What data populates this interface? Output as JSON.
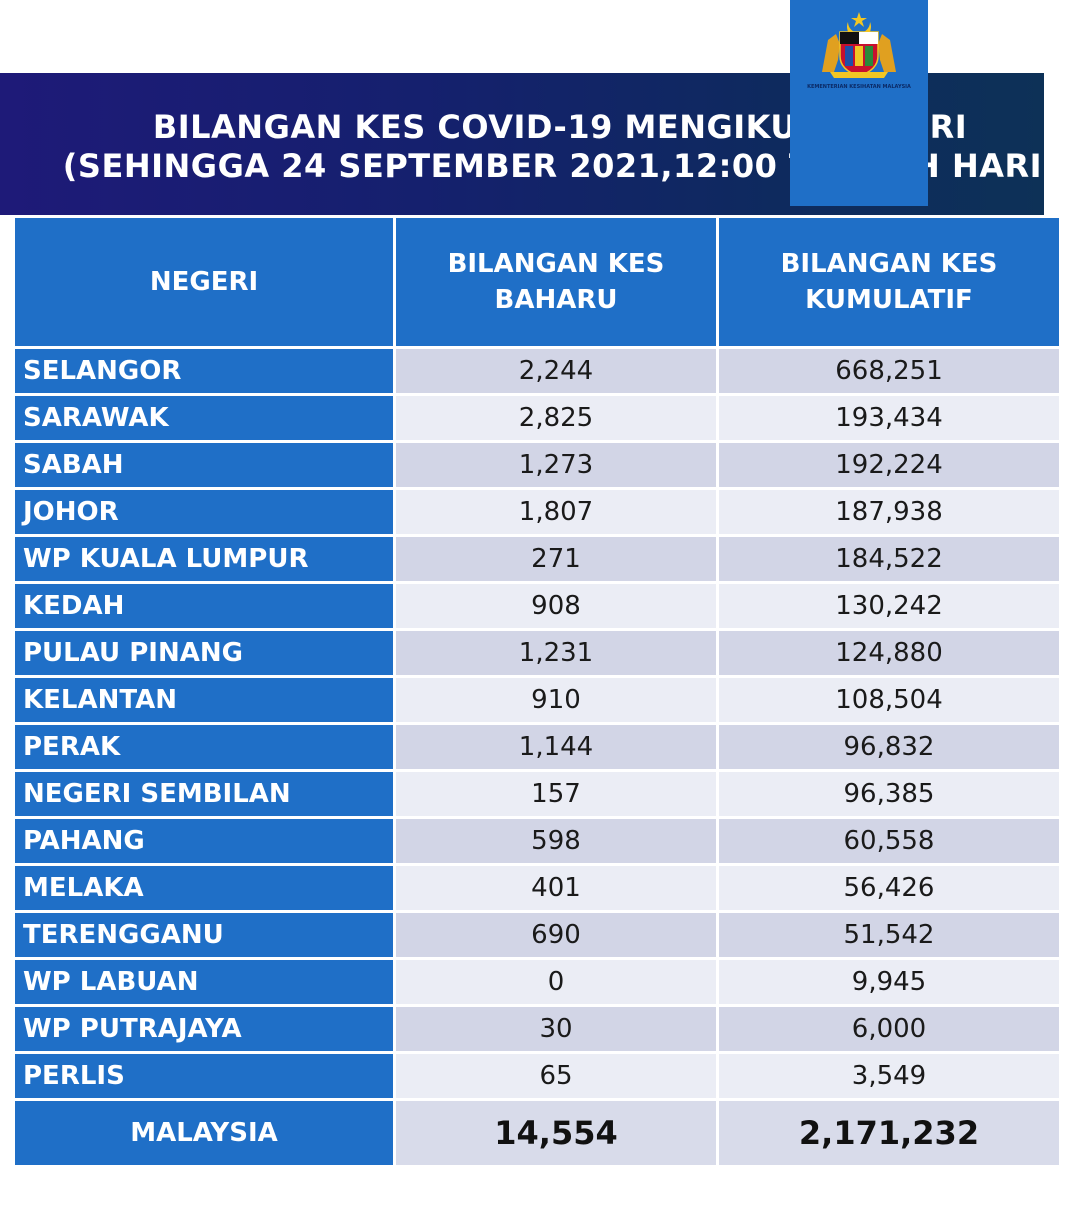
{
  "title_line1": "BILANGAN KES COVID-19 MENGIKUT NEGERI",
  "title_line2": "(SEHINGGA 24 SEPTEMBER 2021,12:00 TENGAH HARI)",
  "crest": {
    "icon": "malaysia-coat-of-arms",
    "text": "KEMENTERIAN KESIHATAN MALAYSIA"
  },
  "colors": {
    "header_blue": "#1f6fc7",
    "banner_navy": "#1e1a78",
    "row_shade_dark": "#d2d5e6",
    "row_shade_light": "#ebedf5"
  },
  "table": {
    "headers": [
      "NEGERI",
      "BILANGAN KES BAHARU",
      "BILANGAN KES KUMULATIF"
    ],
    "rows": [
      {
        "state": "SELANGOR",
        "new": "2,244",
        "cumulative": "668,251"
      },
      {
        "state": "SARAWAK",
        "new": "2,825",
        "cumulative": "193,434"
      },
      {
        "state": "SABAH",
        "new": "1,273",
        "cumulative": "192,224"
      },
      {
        "state": "JOHOR",
        "new": "1,807",
        "cumulative": "187,938"
      },
      {
        "state": "WP KUALA LUMPUR",
        "new": "271",
        "cumulative": "184,522"
      },
      {
        "state": "KEDAH",
        "new": "908",
        "cumulative": "130,242"
      },
      {
        "state": "PULAU PINANG",
        "new": "1,231",
        "cumulative": "124,880"
      },
      {
        "state": "KELANTAN",
        "new": "910",
        "cumulative": "108,504"
      },
      {
        "state": "PERAK",
        "new": "1,144",
        "cumulative": "96,832"
      },
      {
        "state": "NEGERI SEMBILAN",
        "new": "157",
        "cumulative": "96,385"
      },
      {
        "state": "PAHANG",
        "new": "598",
        "cumulative": "60,558"
      },
      {
        "state": "MELAKA",
        "new": "401",
        "cumulative": "56,426"
      },
      {
        "state": "TERENGGANU",
        "new": "690",
        "cumulative": "51,542"
      },
      {
        "state": "WP LABUAN",
        "new": "0",
        "cumulative": "9,945"
      },
      {
        "state": "WP PUTRAJAYA",
        "new": "30",
        "cumulative": "6,000"
      },
      {
        "state": "PERLIS",
        "new": "65",
        "cumulative": "3,549"
      }
    ],
    "total": {
      "label": "MALAYSIA",
      "new": "14,554",
      "cumulative": "2,171,232"
    }
  }
}
